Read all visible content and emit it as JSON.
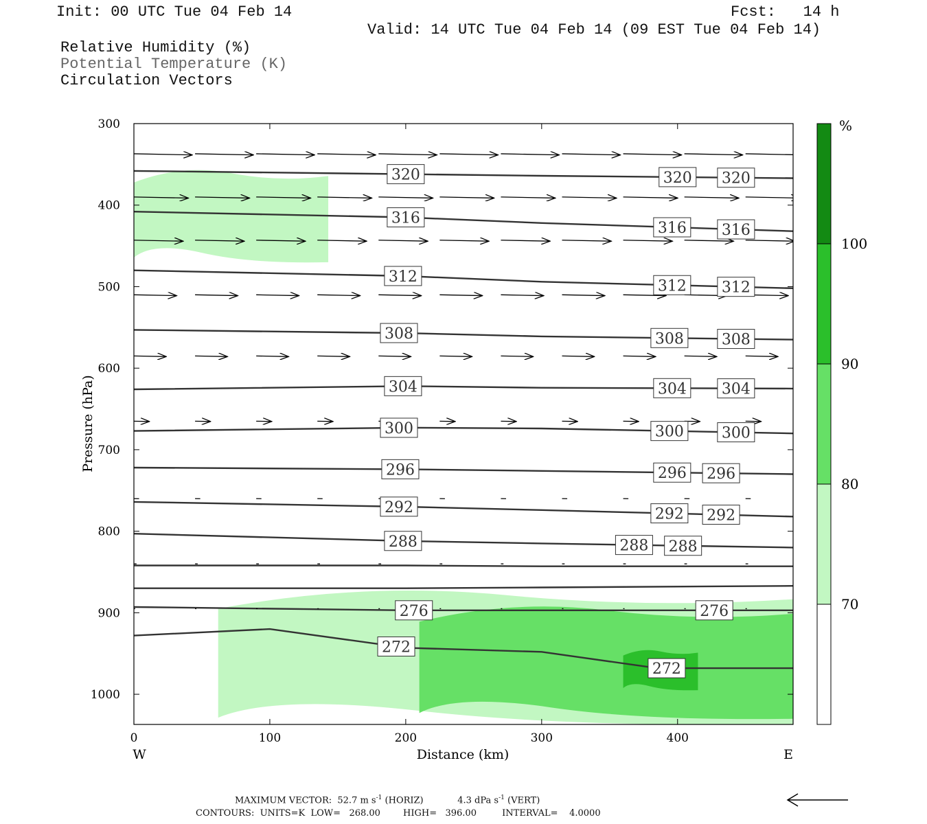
{
  "header": {
    "init": "Init: 00 UTC Tue 04 Feb 14",
    "fcst_label": "Fcst:",
    "fcst_value": "14 h",
    "valid": "Valid: 14 UTC Tue 04 Feb 14 (09 EST Tue 04 Feb 14)",
    "fields": [
      {
        "label": "Relative Humidity (%)",
        "color": "#111111"
      },
      {
        "label": "Potential Temperature (K)",
        "color": "#666666"
      },
      {
        "label": "Circulation Vectors",
        "color": "#111111"
      }
    ]
  },
  "chart_data": {
    "type": "cross-section",
    "xlabel": "Distance (km)",
    "ylabel": "Pressure (hPa)",
    "xlim": [
      0,
      485
    ],
    "ylim": [
      1037,
      300
    ],
    "x_ticks": [
      0,
      100,
      200,
      300,
      400
    ],
    "y_ticks": [
      300,
      400,
      500,
      600,
      700,
      800,
      900,
      1000
    ],
    "x_end_labels": {
      "left": "W",
      "right": "E"
    },
    "colorbar": {
      "unit": "%",
      "levels": [
        70,
        80,
        90,
        100
      ],
      "colors": [
        "#ffffff",
        "#c2f7c2",
        "#66e066",
        "#2bbf2b",
        "#138a13"
      ]
    },
    "theta_contours": [
      {
        "label": "320",
        "points": [
          [
            0,
            358
          ],
          [
            200,
            362
          ],
          [
            300,
            364
          ],
          [
            485,
            367
          ]
        ],
        "labels_at": [
          200,
          400,
          443
        ]
      },
      {
        "label": "316",
        "points": [
          [
            0,
            408
          ],
          [
            200,
            415
          ],
          [
            300,
            422
          ],
          [
            485,
            432
          ]
        ],
        "labels_at": [
          200,
          396,
          443
        ]
      },
      {
        "label": "312",
        "points": [
          [
            0,
            480
          ],
          [
            200,
            487
          ],
          [
            300,
            494
          ],
          [
            485,
            502
          ]
        ],
        "labels_at": [
          198,
          396,
          443
        ]
      },
      {
        "label": "308",
        "points": [
          [
            0,
            553
          ],
          [
            200,
            557
          ],
          [
            300,
            561
          ],
          [
            485,
            565
          ]
        ],
        "labels_at": [
          195,
          394,
          443
        ]
      },
      {
        "label": "304",
        "points": [
          [
            0,
            626
          ],
          [
            200,
            622
          ],
          [
            300,
            624
          ],
          [
            485,
            625
          ]
        ],
        "labels_at": [
          198,
          396,
          443
        ]
      },
      {
        "label": "300",
        "points": [
          [
            0,
            677
          ],
          [
            200,
            673
          ],
          [
            300,
            674
          ],
          [
            485,
            680
          ]
        ],
        "labels_at": [
          195,
          394,
          443
        ]
      },
      {
        "label": "296",
        "points": [
          [
            0,
            722
          ],
          [
            200,
            724
          ],
          [
            300,
            726
          ],
          [
            485,
            730
          ]
        ],
        "labels_at": [
          196,
          396,
          432
        ]
      },
      {
        "label": "292",
        "points": [
          [
            0,
            764
          ],
          [
            200,
            770
          ],
          [
            300,
            774
          ],
          [
            485,
            782
          ]
        ],
        "labels_at": [
          195,
          394,
          432
        ]
      },
      {
        "label": "288",
        "points": [
          [
            0,
            803
          ],
          [
            200,
            812
          ],
          [
            300,
            815
          ],
          [
            485,
            820
          ]
        ],
        "labels_at": [
          198,
          368,
          404
        ]
      },
      {
        "label": "",
        "points": [
          [
            0,
            842
          ],
          [
            200,
            842
          ],
          [
            300,
            843
          ],
          [
            485,
            843
          ]
        ],
        "labels_at": []
      },
      {
        "label": "",
        "points": [
          [
            0,
            870
          ],
          [
            200,
            870
          ],
          [
            300,
            869
          ],
          [
            485,
            867
          ]
        ],
        "labels_at": [],
        "note": "unlabeled contour"
      },
      {
        "label": "276",
        "points": [
          [
            0,
            893
          ],
          [
            200,
            897
          ],
          [
            300,
            897
          ],
          [
            485,
            897
          ]
        ],
        "labels_at": [
          206,
          427
        ]
      },
      {
        "label": "272",
        "points": [
          [
            0,
            928
          ],
          [
            100,
            920
          ],
          [
            200,
            943
          ],
          [
            300,
            948
          ],
          [
            385,
            968
          ],
          [
            485,
            968
          ]
        ],
        "labels_at": [
          193,
          392
        ]
      }
    ],
    "wind_vectors": {
      "rows": [
        {
          "p": 337,
          "u": 45
        },
        {
          "p": 390,
          "u": 42
        },
        {
          "p": 443,
          "u": 38
        },
        {
          "p": 510,
          "u": 33
        },
        {
          "p": 585,
          "u": 25
        },
        {
          "p": 665,
          "u": 12
        },
        {
          "p": 760,
          "u": 4
        },
        {
          "p": 840,
          "u": 2
        },
        {
          "p": 895,
          "u": 1
        }
      ],
      "x_positions": [
        0,
        45,
        90,
        135,
        180,
        225,
        270,
        315,
        360,
        405,
        450
      ]
    },
    "rh_shading": [
      {
        "level": 70,
        "region": "upper-left moist band",
        "x": [
          0,
          143
        ],
        "p": [
          355,
          470
        ]
      },
      {
        "level": 70,
        "region": "low-level moist layer",
        "x": [
          62,
          485
        ],
        "p": [
          870,
          1037
        ]
      },
      {
        "level": 80,
        "region": "low-level",
        "x": [
          210,
          485
        ],
        "p": [
          890,
          1030
        ]
      },
      {
        "level": 90,
        "region": "low-level cores",
        "x": [
          360,
          415
        ],
        "p": [
          945,
          995
        ]
      }
    ]
  },
  "footer": {
    "max_vector_label": "MAXIMUM VECTOR:",
    "max_vector_horiz_value": "52.7 m s",
    "max_vector_horiz_exp": "-1",
    "max_vector_horiz_tag": "(HORIZ)",
    "max_vector_vert_value": "4.3 dPa s",
    "max_vector_vert_exp": "-1",
    "max_vector_vert_tag": "(VERT)",
    "contours_line": "CONTOURS:  UNITS=K  LOW=   268.00        HIGH=   396.00         INTERVAL=    4.0000"
  }
}
